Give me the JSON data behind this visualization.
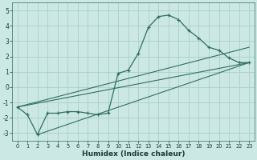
{
  "xlabel": "Humidex (Indice chaleur)",
  "background_color": "#cce8e4",
  "grid_color": "#aaceca",
  "line_color": "#2d6e62",
  "xlim": [
    -0.5,
    23.5
  ],
  "ylim": [
    -3.5,
    5.5
  ],
  "xticks": [
    0,
    1,
    2,
    3,
    4,
    5,
    6,
    7,
    8,
    9,
    10,
    11,
    12,
    13,
    14,
    15,
    16,
    17,
    18,
    19,
    20,
    21,
    22,
    23
  ],
  "yticks": [
    -3,
    -2,
    -1,
    0,
    1,
    2,
    3,
    4,
    5
  ],
  "main_x": [
    0,
    1,
    2,
    3,
    4,
    5,
    6,
    7,
    8,
    9,
    10,
    11,
    12,
    13,
    14,
    15,
    16,
    17,
    18,
    19,
    20,
    21,
    22,
    23
  ],
  "main_y": [
    -1.3,
    -1.8,
    -3.1,
    -1.7,
    -1.7,
    -1.6,
    -1.6,
    -1.7,
    -1.8,
    -1.7,
    0.9,
    1.1,
    2.2,
    3.9,
    4.6,
    4.7,
    4.4,
    3.7,
    3.2,
    2.6,
    2.4,
    1.9,
    1.6,
    1.6
  ],
  "straight_lines": [
    {
      "x": [
        0,
        23
      ],
      "y": [
        -1.3,
        1.6
      ]
    },
    {
      "x": [
        2,
        23
      ],
      "y": [
        -3.1,
        1.6
      ]
    },
    {
      "x": [
        0,
        23
      ],
      "y": [
        -1.3,
        2.6
      ]
    }
  ]
}
